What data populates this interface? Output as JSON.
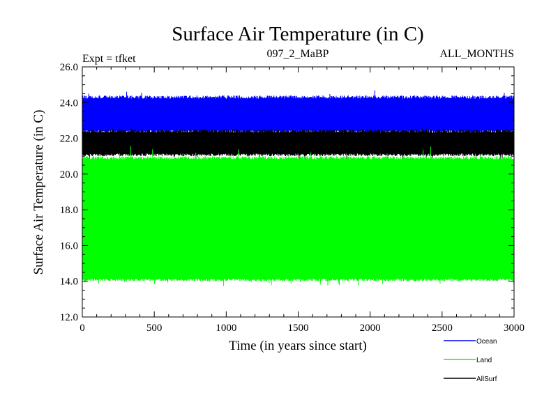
{
  "chart_data": {
    "type": "line",
    "title": "Surface Air Temperature (in C)",
    "subtitle_left": "Expt = tfket",
    "subtitle_center": "097_2_MaBP",
    "subtitle_right": "ALL_MONTHS",
    "xlabel": "Time (in years since start)",
    "ylabel": "Surface Air Temperature (in C)",
    "xlim": [
      0,
      3000
    ],
    "ylim": [
      12.0,
      26.0
    ],
    "x_ticks": [
      0,
      500,
      1000,
      1500,
      2000,
      2500,
      3000
    ],
    "x_tick_labels": [
      "0",
      "500",
      "1000",
      "1500",
      "2000",
      "2500",
      "3000"
    ],
    "y_ticks": [
      12.0,
      14.0,
      16.0,
      18.0,
      20.0,
      22.0,
      24.0,
      26.0
    ],
    "y_tick_labels": [
      "12.0",
      "14.0",
      "16.0",
      "18.0",
      "20.0",
      "22.0",
      "24.0",
      "26.0"
    ],
    "grid": false,
    "legend_position": "bottom-right",
    "series": [
      {
        "name": "Ocean",
        "color": "#0000ff",
        "min": 22.3,
        "max": 24.4,
        "peak_max": 24.7
      },
      {
        "name": "AllSurf",
        "color": "#000000",
        "min": 21.0,
        "max": 22.5,
        "peak_max": 22.7
      },
      {
        "name": "Land",
        "color": "#00ff00",
        "min": 14.0,
        "max": 21.0,
        "peak_max": 21.6
      }
    ],
    "legend": [
      {
        "name": "Ocean",
        "color": "#0000ff"
      },
      {
        "name": "Land",
        "color": "#00ff00"
      },
      {
        "name": "AllSurf",
        "color": "#000000"
      }
    ]
  }
}
